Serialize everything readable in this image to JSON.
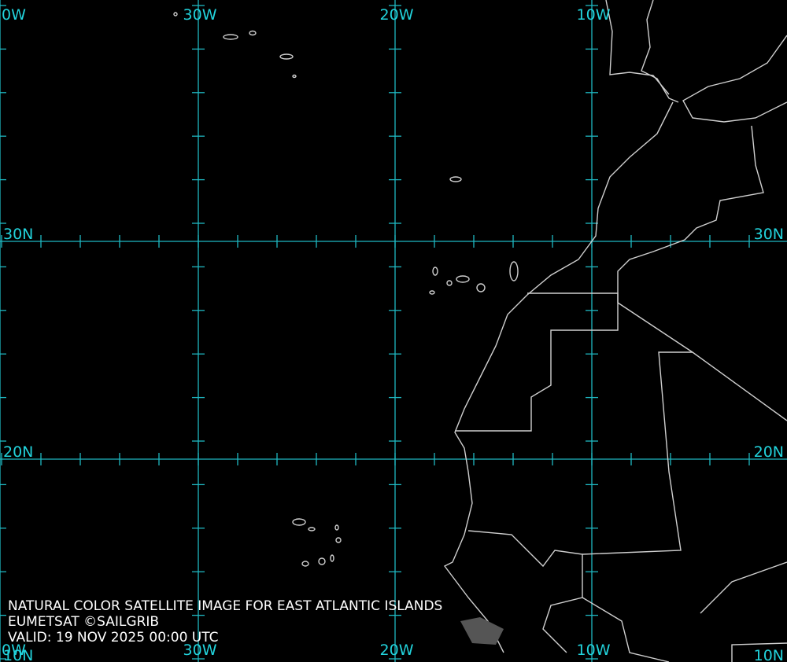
{
  "map": {
    "lon_labels_top": [
      "0W",
      "30W",
      "20W",
      "10W"
    ],
    "lon_labels_bottom": [
      "0W",
      "30W",
      "20W",
      "10W"
    ],
    "lat_labels_left": [
      "30N",
      "20N",
      "10N"
    ],
    "lat_labels_right": [
      "30N",
      "20N",
      "10N"
    ],
    "caption": [
      "NATURAL COLOR SATELLITE IMAGE FOR EAST ATLANTIC ISLANDS",
      "EUMETSAT ©SAILGRIB",
      "VALID:  19 NOV 2025 00:00 UTC"
    ]
  }
}
